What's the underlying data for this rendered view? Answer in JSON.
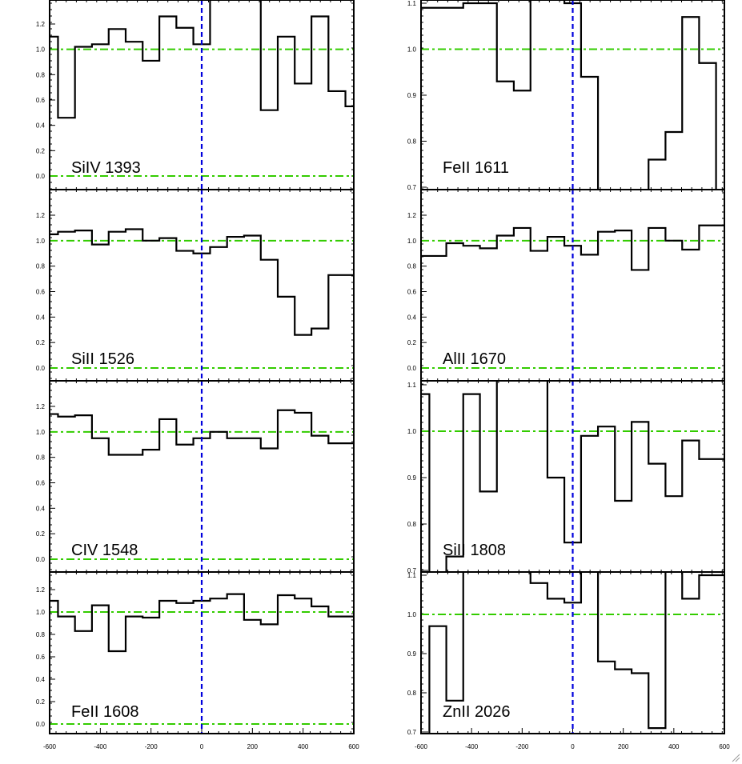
{
  "chart_data": [
    {
      "type": "line",
      "label": "SiIV 1393",
      "xlim": [
        -600,
        600
      ],
      "ylim": [
        -0.1,
        1.4
      ],
      "yticks": [
        0.0,
        0.2,
        0.4,
        0.6,
        0.8,
        1.0,
        1.2
      ],
      "ytick_labels": [
        "0.0",
        "0.2",
        "0.4",
        "0.6",
        "0.8",
        "1.0",
        "1.2"
      ],
      "xticks": [],
      "xtick_labels": [],
      "continuum": 1.0,
      "zero_level": 0.0,
      "step_x": [
        -600,
        -567,
        -500,
        -433,
        -367,
        -300,
        -233,
        -167,
        -100,
        -33,
        33,
        100,
        167,
        233,
        300,
        367,
        433,
        500,
        567,
        600
      ],
      "step_y": [
        1.1,
        0.46,
        1.02,
        1.04,
        1.16,
        1.06,
        0.91,
        1.26,
        1.17,
        1.04,
        1.45,
        1.45,
        1.45,
        0.52,
        1.1,
        0.73,
        1.26,
        0.67,
        0.55,
        0.55
      ]
    },
    {
      "type": "line",
      "label": "SiII 1526",
      "xlim": [
        -600,
        600
      ],
      "ylim": [
        -0.1,
        1.4
      ],
      "yticks": [
        0.0,
        0.2,
        0.4,
        0.6,
        0.8,
        1.0,
        1.2
      ],
      "ytick_labels": [
        "0.0",
        "0.2",
        "0.4",
        "0.6",
        "0.8",
        "1.0",
        "1.2"
      ],
      "xticks": [],
      "xtick_labels": [],
      "continuum": 1.0,
      "zero_level": 0.0,
      "step_x": [
        -600,
        -567,
        -500,
        -433,
        -367,
        -300,
        -233,
        -167,
        -100,
        -33,
        33,
        100,
        167,
        233,
        300,
        367,
        433,
        500,
        567,
        600
      ],
      "step_y": [
        1.05,
        1.07,
        1.08,
        0.97,
        1.07,
        1.09,
        1.0,
        1.02,
        0.92,
        0.9,
        0.95,
        1.03,
        1.04,
        0.85,
        0.56,
        0.26,
        0.31,
        0.73,
        0.73,
        0.73
      ]
    },
    {
      "type": "line",
      "label": "CIV 1548",
      "xlim": [
        -600,
        600
      ],
      "ylim": [
        -0.1,
        1.4
      ],
      "yticks": [
        0.0,
        0.2,
        0.4,
        0.6,
        0.8,
        1.0,
        1.2
      ],
      "ytick_labels": [
        "0.0",
        "0.2",
        "0.4",
        "0.6",
        "0.8",
        "1.0",
        "1.2"
      ],
      "xticks": [],
      "xtick_labels": [],
      "continuum": 1.0,
      "zero_level": 0.0,
      "step_x": [
        -600,
        -567,
        -500,
        -433,
        -367,
        -300,
        -233,
        -167,
        -100,
        -33,
        33,
        100,
        167,
        233,
        300,
        367,
        433,
        500,
        567,
        600
      ],
      "step_y": [
        1.14,
        1.12,
        1.13,
        0.95,
        0.82,
        0.82,
        0.86,
        1.1,
        0.9,
        0.95,
        1.0,
        0.95,
        0.95,
        0.87,
        1.17,
        1.15,
        0.97,
        0.91,
        0.91,
        0.91
      ]
    },
    {
      "type": "line",
      "label": "FeII 1608",
      "xlim": [
        -600,
        600
      ],
      "ylim": [
        -0.1,
        1.4
      ],
      "yticks": [
        0.0,
        0.2,
        0.4,
        0.6,
        0.8,
        1.0,
        1.2
      ],
      "ytick_labels": [
        "0.0",
        "0.2",
        "0.4",
        "0.6",
        "0.8",
        "1.0",
        "1.2"
      ],
      "xticks": [
        -600,
        -400,
        -200,
        0,
        200,
        400,
        600
      ],
      "xtick_labels": [
        "-600",
        "-400",
        "-200",
        "0",
        "200",
        "400",
        "600"
      ],
      "continuum": 1.0,
      "zero_level": 0.0,
      "step_x": [
        -600,
        -567,
        -500,
        -433,
        -367,
        -300,
        -233,
        -167,
        -100,
        -33,
        33,
        100,
        167,
        233,
        300,
        367,
        433,
        500,
        567,
        600
      ],
      "step_y": [
        1.1,
        0.96,
        0.83,
        1.06,
        0.65,
        0.96,
        0.95,
        1.1,
        1.08,
        1.1,
        1.12,
        1.16,
        0.93,
        0.89,
        1.15,
        1.12,
        1.05,
        0.96,
        0.96,
        0.96
      ]
    },
    {
      "type": "line",
      "label": "FeII 1611",
      "xlim": [
        -600,
        600
      ],
      "ylim": [
        0.7,
        1.11
      ],
      "yticks": [
        0.7,
        0.8,
        0.9,
        1.0,
        1.1
      ],
      "ytick_labels": [
        "0.7",
        "0.8",
        "0.9",
        "1.0",
        "1.1"
      ],
      "xticks": [],
      "xtick_labels": [],
      "continuum": 1.0,
      "zero_level": null,
      "step_x": [
        -600,
        -567,
        -500,
        -433,
        -367,
        -300,
        -233,
        -167,
        -100,
        -33,
        33,
        100,
        167,
        233,
        300,
        367,
        433,
        500,
        567,
        600
      ],
      "step_y": [
        1.09,
        1.09,
        1.09,
        1.1,
        1.1,
        0.93,
        0.91,
        1.12,
        1.12,
        1.1,
        0.94,
        0.6,
        0.6,
        0.6,
        0.76,
        0.82,
        1.07,
        0.97,
        0.6,
        0.6
      ]
    },
    {
      "type": "line",
      "label": "AlII 1670",
      "xlim": [
        -600,
        600
      ],
      "ylim": [
        -0.1,
        1.4
      ],
      "yticks": [
        0.0,
        0.2,
        0.4,
        0.6,
        0.8,
        1.0,
        1.2
      ],
      "ytick_labels": [
        "0.0",
        "0.2",
        "0.4",
        "0.6",
        "0.8",
        "1.0",
        "1.2"
      ],
      "xticks": [],
      "xtick_labels": [],
      "continuum": 1.0,
      "zero_level": 0.0,
      "step_x": [
        -600,
        -567,
        -500,
        -433,
        -367,
        -300,
        -233,
        -167,
        -100,
        -33,
        33,
        100,
        167,
        233,
        300,
        367,
        433,
        500,
        567,
        600
      ],
      "step_y": [
        0.88,
        0.88,
        0.98,
        0.96,
        0.94,
        1.04,
        1.1,
        0.92,
        1.03,
        0.96,
        0.89,
        1.07,
        1.08,
        0.77,
        1.1,
        1.0,
        0.93,
        1.12,
        1.12,
        1.12
      ]
    },
    {
      "type": "line",
      "label": "SiII 1808",
      "xlim": [
        -600,
        600
      ],
      "ylim": [
        0.7,
        1.1
      ],
      "yticks": [
        0.7,
        0.8,
        0.9,
        1.0,
        1.1
      ],
      "ytick_labels": [
        "0.7",
        "0.8",
        "0.9",
        "1.0",
        "1.1"
      ],
      "xticks": [],
      "xtick_labels": [],
      "continuum": 1.0,
      "zero_level": null,
      "step_x": [
        -600,
        -567,
        -500,
        -433,
        -367,
        -300,
        -233,
        -167,
        -100,
        -33,
        33,
        100,
        167,
        233,
        300,
        367,
        433,
        500,
        567,
        600
      ],
      "step_y": [
        1.08,
        0.6,
        0.73,
        1.08,
        0.87,
        1.15,
        1.15,
        1.15,
        0.9,
        0.76,
        0.99,
        1.01,
        0.85,
        1.02,
        0.93,
        0.86,
        0.98,
        0.94,
        0.94,
        0.94
      ]
    },
    {
      "type": "line",
      "label": "ZnII 2026",
      "xlim": [
        -600,
        600
      ],
      "ylim": [
        0.7,
        1.1
      ],
      "yticks": [
        0.7,
        0.8,
        0.9,
        1.0,
        1.1
      ],
      "ytick_labels": [
        "0.7",
        "0.8",
        "0.9",
        "1.0",
        "1.1"
      ],
      "xticks": [
        -600,
        -400,
        -200,
        0,
        200,
        400,
        600
      ],
      "xtick_labels": [
        "-600",
        "-400",
        "-200",
        "0",
        "200",
        "400",
        "600"
      ],
      "continuum": 1.0,
      "zero_level": null,
      "step_x": [
        -600,
        -567,
        -500,
        -433,
        -367,
        -300,
        -233,
        -167,
        -100,
        -33,
        33,
        100,
        167,
        233,
        300,
        367,
        433,
        500,
        567,
        600
      ],
      "step_y": [
        0.6,
        0.97,
        0.78,
        1.15,
        1.15,
        1.15,
        1.15,
        1.08,
        1.04,
        1.03,
        1.15,
        0.88,
        0.86,
        0.85,
        0.71,
        1.15,
        1.04,
        1.1,
        1.1,
        1.1
      ]
    }
  ],
  "colors": {
    "spectrum": "#000000",
    "continuum": "#33cc00",
    "velocity_zero": "#0000dd",
    "frame": "#000000"
  }
}
